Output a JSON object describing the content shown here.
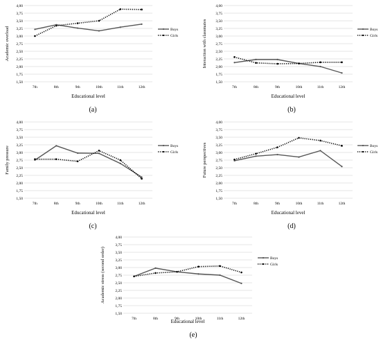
{
  "chart_data": [
    {
      "type": "line",
      "caption": "(a)",
      "xlabel": "Educational level",
      "ylabel": "Academic overload",
      "ylim": [
        1.5,
        4.0
      ],
      "yticks": [
        "1,50",
        "1,75",
        "2,00",
        "2,25",
        "2,50",
        "2,75",
        "3,00",
        "3,25",
        "3,50",
        "3,75",
        "4,00"
      ],
      "categories": [
        "7th",
        "8th",
        "9th",
        "10th",
        "11th",
        "12th"
      ],
      "grid": true,
      "legend_position": "right",
      "series": [
        {
          "name": "Boys",
          "style": "solid",
          "color": "#555555",
          "values": [
            3.22,
            3.37,
            3.26,
            3.17,
            3.29,
            3.39
          ]
        },
        {
          "name": "Girls",
          "style": "dotted",
          "color": "#000000",
          "values": [
            3.0,
            3.34,
            3.42,
            3.5,
            3.88,
            3.87
          ]
        }
      ]
    },
    {
      "type": "line",
      "caption": "(b)",
      "xlabel": "Educational level",
      "ylabel": "Interaction with classmates",
      "ylim": [
        1.5,
        4.0
      ],
      "yticks": [
        "1,50",
        "1,75",
        "2,00",
        "2,25",
        "2,50",
        "2,75",
        "3,00",
        "3,25",
        "3,50",
        "3,75",
        "4,00"
      ],
      "categories": [
        "7th",
        "8th",
        "9th",
        "10th",
        "11th",
        "12th"
      ],
      "grid": true,
      "legend_position": "right",
      "series": [
        {
          "name": "Boys",
          "style": "solid",
          "color": "#555555",
          "values": [
            2.13,
            2.23,
            2.23,
            2.1,
            2.0,
            1.79
          ]
        },
        {
          "name": "Girls",
          "style": "dotted",
          "color": "#000000",
          "values": [
            2.31,
            2.12,
            2.09,
            2.1,
            2.14,
            2.14
          ]
        }
      ]
    },
    {
      "type": "line",
      "caption": "(c)",
      "xlabel": "Educational level",
      "ylabel": "Family pressure",
      "ylim": [
        1.5,
        4.0
      ],
      "yticks": [
        "1,50",
        "1,75",
        "2,00",
        "2,25",
        "2,50",
        "2,75",
        "3,00",
        "3,25",
        "3,50",
        "3,75",
        "4,00"
      ],
      "categories": [
        "7th",
        "8th",
        "9th",
        "10th",
        "11th",
        "12th"
      ],
      "grid": true,
      "legend_position": "right",
      "series": [
        {
          "name": "Boys",
          "style": "solid",
          "color": "#555555",
          "values": [
            2.75,
            3.22,
            2.98,
            2.97,
            2.64,
            2.19
          ]
        },
        {
          "name": "Girls",
          "style": "dotted",
          "color": "#000000",
          "values": [
            2.78,
            2.78,
            2.71,
            3.06,
            2.75,
            2.14
          ]
        }
      ]
    },
    {
      "type": "line",
      "caption": "(d)",
      "xlabel": "Educational level",
      "ylabel": "Future perspectives",
      "ylim": [
        1.5,
        4.0
      ],
      "yticks": [
        "1,50",
        "1,75",
        "2,00",
        "2,25",
        "2,50",
        "2,75",
        "3,00",
        "3,25",
        "3,50",
        "3,75",
        "4,00"
      ],
      "categories": [
        "7th",
        "8th",
        "9th",
        "10th",
        "11th",
        "12th"
      ],
      "grid": true,
      "legend_position": "right",
      "series": [
        {
          "name": "Boys",
          "style": "solid",
          "color": "#555555",
          "values": [
            2.73,
            2.88,
            2.93,
            2.85,
            3.06,
            2.54
          ]
        },
        {
          "name": "Girls",
          "style": "dotted",
          "color": "#000000",
          "values": [
            2.77,
            2.96,
            3.17,
            3.48,
            3.39,
            3.22
          ]
        }
      ]
    },
    {
      "type": "line",
      "caption": "(e)",
      "xlabel": "Educational level",
      "ylabel": "Academic stress (second order)",
      "ylim": [
        1.5,
        4.0
      ],
      "yticks": [
        "1,50",
        "1,75",
        "2,00",
        "2,25",
        "2,50",
        "2,75",
        "3,00",
        "3,25",
        "3,50",
        "3,75",
        "4,00"
      ],
      "categories": [
        "7th",
        "8th",
        "9th",
        "10th",
        "11th",
        "12th"
      ],
      "grid": true,
      "legend_position": "right",
      "series": [
        {
          "name": "Boys",
          "style": "solid",
          "color": "#555555",
          "values": [
            2.71,
            2.98,
            2.86,
            2.79,
            2.75,
            2.48
          ]
        },
        {
          "name": "Girls",
          "style": "dotted",
          "color": "#000000",
          "values": [
            2.71,
            2.82,
            2.86,
            3.03,
            3.05,
            2.84
          ]
        }
      ]
    }
  ]
}
